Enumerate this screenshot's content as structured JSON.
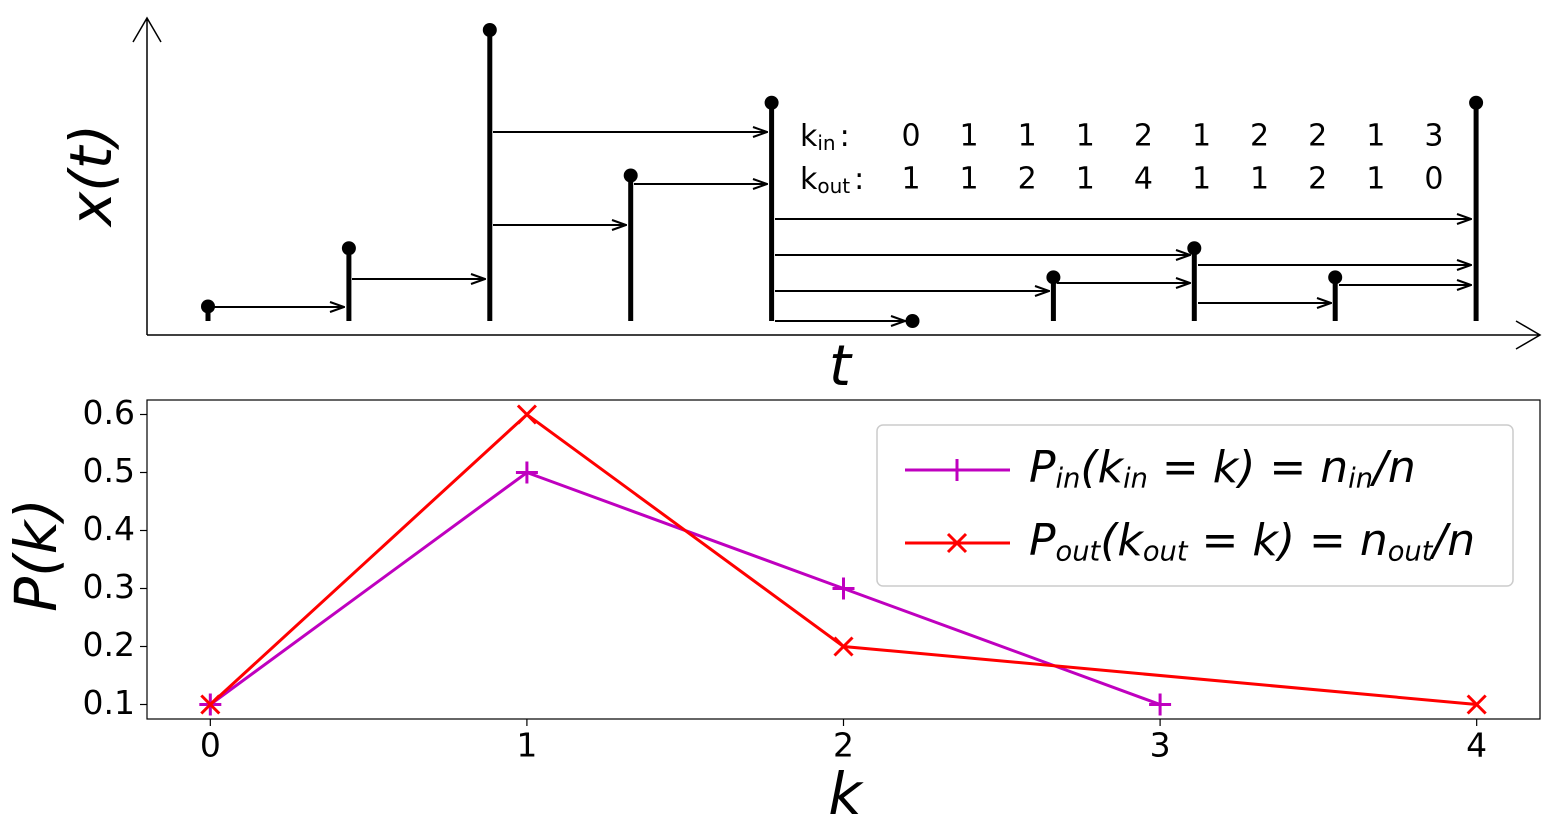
{
  "chart_data": [
    {
      "type": "stem",
      "x_label": "t",
      "y_label": "x(t)",
      "color": "#000000",
      "values": [
        0.05,
        0.25,
        1.0,
        0.5,
        0.75,
        0,
        0.15,
        0.25,
        0.15,
        0.75
      ],
      "ylim": [
        0,
        1
      ],
      "degree_table": {
        "rows": [
          {
            "symbol": "k",
            "sub": "in",
            "sep": ":",
            "values": [
              0,
              1,
              1,
              1,
              2,
              1,
              2,
              2,
              1,
              3
            ]
          },
          {
            "symbol": "k",
            "sub": "out",
            "sep": ":",
            "values": [
              1,
              1,
              2,
              1,
              4,
              1,
              1,
              2,
              1,
              0
            ]
          }
        ]
      }
    },
    {
      "type": "line",
      "x_label": "k",
      "y_label": "P(k)",
      "xlim": [
        -0.2,
        4.2
      ],
      "xticks": [
        0,
        1,
        2,
        3,
        4
      ],
      "ylim": [
        0.075,
        0.625
      ],
      "yticks": [
        0.1,
        0.2,
        0.3,
        0.4,
        0.5,
        0.6
      ],
      "legend": "upper right",
      "series": [
        {
          "name": [
            "P",
            {
              "sub": "in"
            },
            "(k",
            {
              "sub": "in"
            },
            " = k) = n",
            {
              "sub": "in"
            },
            "/n"
          ],
          "color": "#bf00bf",
          "marker": "+",
          "x": [
            0,
            1,
            2,
            3
          ],
          "values": [
            0.1,
            0.5,
            0.3,
            0.1
          ]
        },
        {
          "name": [
            "P",
            {
              "sub": "out"
            },
            "(k",
            {
              "sub": "out"
            },
            " = k) = n",
            {
              "sub": "out"
            },
            "/n"
          ],
          "color": "#ff0000",
          "marker": "x",
          "x": [
            0,
            1,
            2,
            4
          ],
          "values": [
            0.1,
            0.6,
            0.2,
            0.1
          ]
        }
      ]
    }
  ]
}
